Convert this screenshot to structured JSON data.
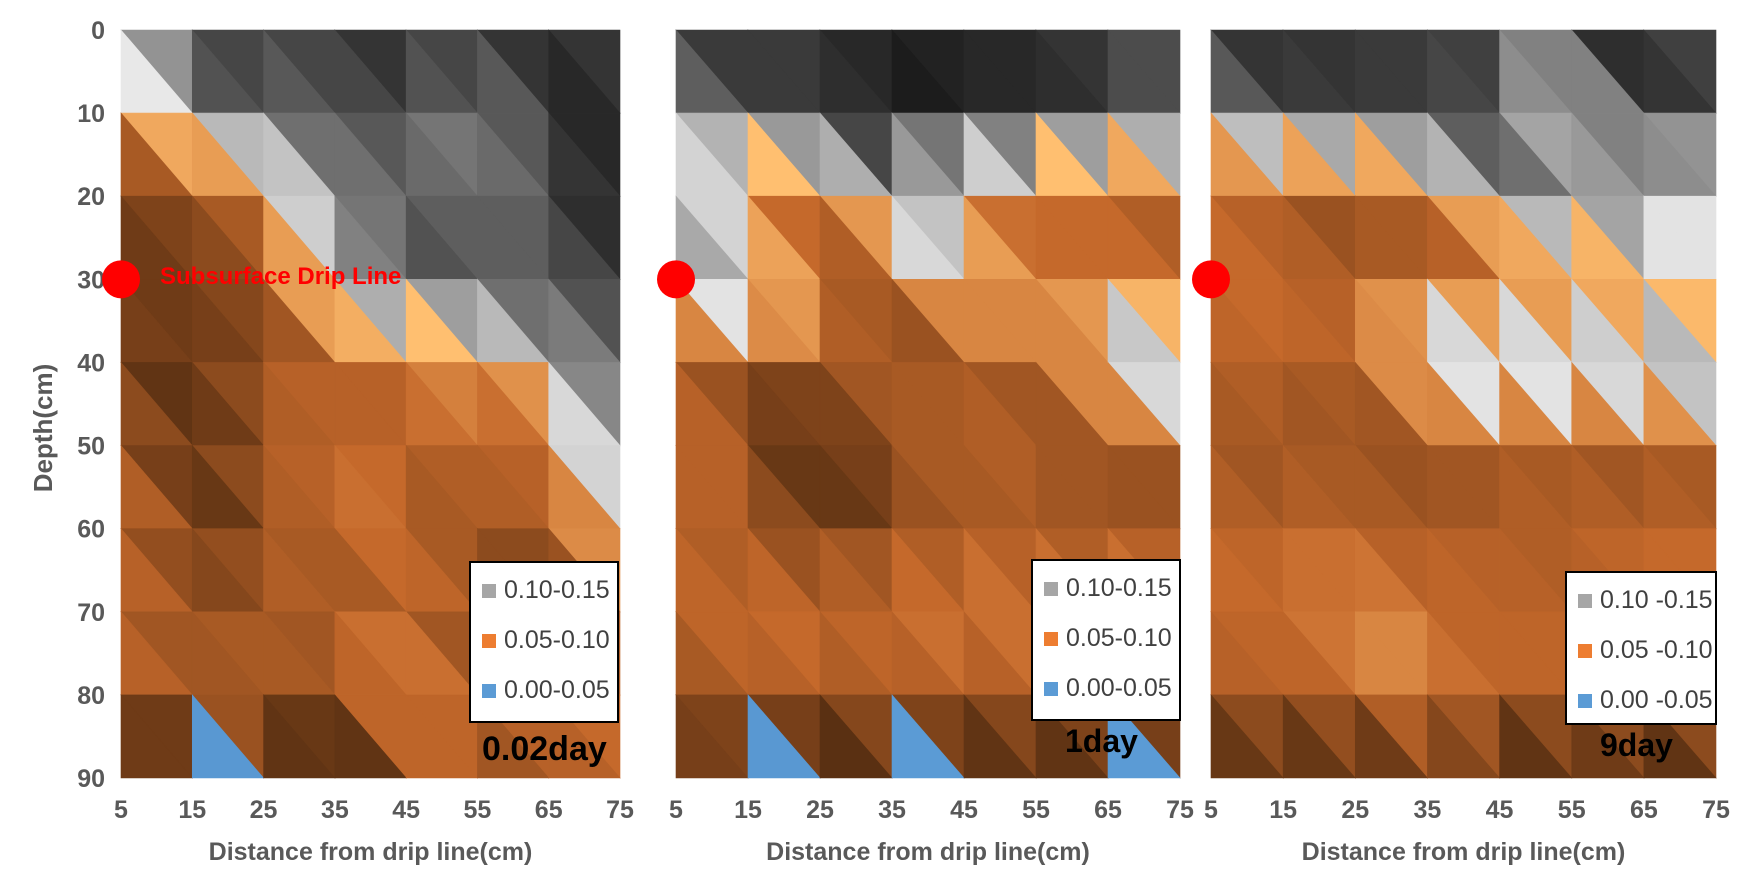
{
  "figure": {
    "y_axis_label": "Depth(cm)",
    "drip_line_label": "Subsurface Drip Line",
    "drip_line_color": "#ff0000"
  },
  "chart_data": [
    {
      "type": "heatmap",
      "panel_label": "0.02day",
      "xlabel": "Distance from drip line(cm)",
      "ylabel": "Depth(cm)",
      "x": [
        5,
        15,
        25,
        35,
        45,
        55,
        65,
        75
      ],
      "y": [
        0,
        10,
        20,
        30,
        40,
        50,
        60,
        70,
        80,
        90
      ],
      "xlim": [
        5,
        75
      ],
      "ylim": [
        0,
        90
      ],
      "y_inverted": true,
      "drip_line": {
        "x": 5,
        "y": 30
      },
      "legend": [
        {
          "label": "0.10-0.15",
          "color": "#a6a6a6"
        },
        {
          "label": "0.05-0.10",
          "color": "#ed7d31"
        },
        {
          "label": "0.00-0.05",
          "color": "#5b9bd5"
        }
      ],
      "grid": [
        [
          0.085,
          0.165,
          0.14,
          0.155,
          0.165,
          0.15,
          0.16,
          0.14
        ],
        [
          0.085,
          0.13,
          0.14,
          0.15,
          0.14,
          0.13,
          0.15,
          0.16
        ],
        [
          0.055,
          0.065,
          0.075,
          0.12,
          0.14,
          0.135,
          0.15,
          0.16
        ],
        [
          0.055,
          0.055,
          0.065,
          0.13,
          0.145,
          0.15,
          0.14,
          0.155
        ],
        [
          0.06,
          0.055,
          0.06,
          0.075,
          0.08,
          0.075,
          0.12,
          0.14
        ],
        [
          0.085,
          0.04,
          0.07,
          0.08,
          0.06,
          0.09,
          0.065,
          0.13
        ],
        [
          0.08,
          0.045,
          0.075,
          0.065,
          0.085,
          0.06,
          0.06,
          0.125
        ],
        [
          0.07,
          0.065,
          0.07,
          0.065,
          0.075,
          0.06,
          0.065,
          0.07
        ],
        [
          0.08,
          0.065,
          0.07,
          0.065,
          0.09,
          0.065,
          0.08,
          0.08
        ],
        [
          0.065,
          0.02,
          0.06,
          0.025,
          0.065,
          0.065,
          0.07,
          0.065
        ]
      ]
    },
    {
      "type": "heatmap",
      "panel_label": "1day",
      "xlabel": "Distance from drip line(cm)",
      "ylabel": "",
      "x": [
        5,
        15,
        25,
        35,
        45,
        55,
        65,
        75
      ],
      "y": [
        0,
        10,
        20,
        30,
        40,
        50,
        60,
        70,
        80,
        90
      ],
      "xlim": [
        5,
        75
      ],
      "ylim": [
        0,
        90
      ],
      "y_inverted": true,
      "drip_line": {
        "x": 5,
        "y": 30
      },
      "legend": [
        {
          "label": "0.10-0.15",
          "color": "#a6a6a6"
        },
        {
          "label": "0.05-0.10",
          "color": "#ed7d31"
        },
        {
          "label": "0.00-0.05",
          "color": "#5b9bd5"
        }
      ],
      "grid": [
        [
          0.155,
          0.15,
          0.15,
          0.16,
          0.155,
          0.16,
          0.15,
          0.15
        ],
        [
          0.12,
          0.15,
          0.155,
          0.16,
          0.16,
          0.155,
          0.15,
          0.14
        ],
        [
          0.12,
          0.08,
          0.07,
          0.13,
          0.085,
          0.08,
          0.065,
          0.065
        ],
        [
          0.12,
          0.12,
          0.075,
          0.065,
          0.12,
          0.065,
          0.08,
          0.08
        ],
        [
          0.065,
          0.065,
          0.07,
          0.065,
          0.065,
          0.065,
          0.12,
          0.13
        ],
        [
          0.085,
          0.065,
          0.04,
          0.065,
          0.075,
          0.07,
          0.065,
          0.065
        ],
        [
          0.065,
          0.065,
          0.055,
          0.065,
          0.065,
          0.065,
          0.065,
          0.065
        ],
        [
          0.075,
          0.08,
          0.075,
          0.08,
          0.08,
          0.085,
          0.08,
          0.085
        ],
        [
          0.065,
          0.065,
          0.07,
          0.065,
          0.07,
          0.065,
          0.065,
          0.065
        ],
        [
          0.06,
          0.045,
          0.035,
          0.045,
          0.04,
          0.045,
          0.045,
          0.04
        ]
      ]
    },
    {
      "type": "heatmap",
      "panel_label": "9day",
      "xlabel": "Distance from drip line(cm)",
      "ylabel": "",
      "x": [
        5,
        15,
        25,
        35,
        45,
        55,
        65,
        75
      ],
      "y": [
        0,
        10,
        20,
        30,
        40,
        50,
        60,
        70,
        80,
        90
      ],
      "xlim": [
        5,
        75
      ],
      "ylim": [
        0,
        90
      ],
      "y_inverted": true,
      "drip_line": {
        "x": 5,
        "y": 30
      },
      "legend": [
        {
          "label": "0.10 -0.15",
          "color": "#a6a6a6"
        },
        {
          "label": "0.05 -0.10",
          "color": "#ed7d31"
        },
        {
          "label": "0.00 -0.05",
          "color": "#5b9bd5"
        }
      ],
      "grid": [
        [
          0.155,
          0.16,
          0.15,
          0.15,
          0.16,
          0.15,
          0.155,
          0.15
        ],
        [
          0.13,
          0.145,
          0.15,
          0.155,
          0.14,
          0.085,
          0.16,
          0.145
        ],
        [
          0.07,
          0.065,
          0.065,
          0.065,
          0.13,
          0.14,
          0.15,
          0.075
        ],
        [
          0.075,
          0.08,
          0.065,
          0.075,
          0.075,
          0.075,
          0.075,
          0.08
        ],
        [
          0.075,
          0.07,
          0.07,
          0.12,
          0.12,
          0.12,
          0.13,
          0.14
        ],
        [
          0.065,
          0.065,
          0.065,
          0.065,
          0.065,
          0.065,
          0.065,
          0.065
        ],
        [
          0.075,
          0.07,
          0.075,
          0.065,
          0.07,
          0.075,
          0.07,
          0.075
        ],
        [
          0.075,
          0.075,
          0.085,
          0.075,
          0.08,
          0.065,
          0.075,
          0.08
        ],
        [
          0.07,
          0.07,
          0.075,
          0.09,
          0.065,
          0.075,
          0.065,
          0.075
        ],
        [
          0.045,
          0.045,
          0.045,
          0.045,
          0.045,
          0.045,
          0.045,
          0.045
        ]
      ]
    }
  ]
}
